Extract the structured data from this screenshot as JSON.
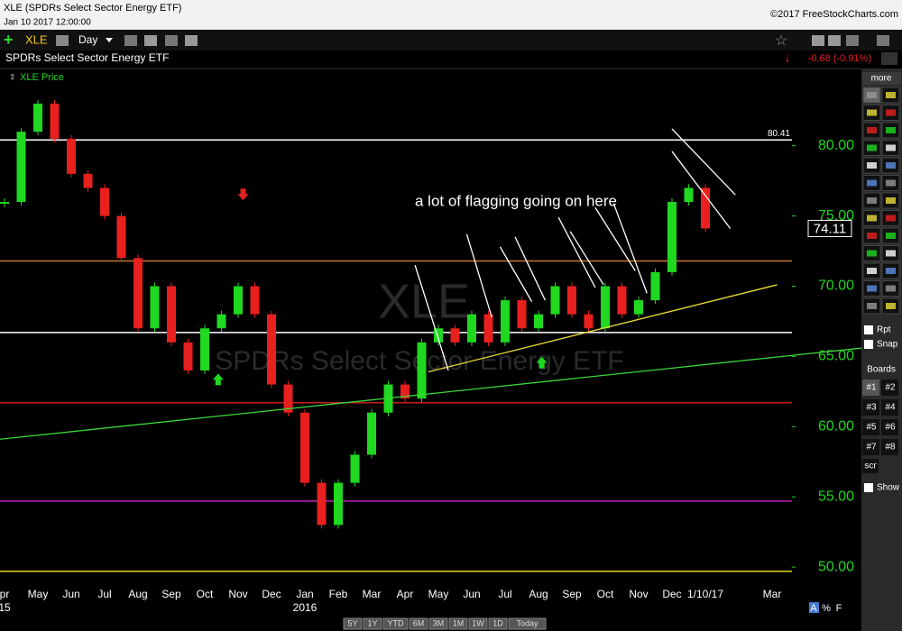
{
  "ui": {
    "window_title": "XLE (SPDRs Select Sector Energy ETF)",
    "timestamp": "Jan 10 2017 12:00:00",
    "copyright": "©2017 FreeStockCharts.com",
    "symbol": "XLE",
    "interval": "Day",
    "name": "SPDRs Select Sector Energy ETF",
    "change": "-0.68 (-0.91%)",
    "sidebar": {
      "more": "more",
      "rpt": "Rpt",
      "snap": "Snap",
      "boards": "Boards",
      "board_buttons": [
        "#1",
        "#2",
        "#3",
        "#4",
        "#5",
        "#6",
        "#7",
        "#8"
      ],
      "scr": "scr",
      "show": "Show"
    },
    "ranges": [
      "5Y",
      "1Y",
      "YTD",
      "6M",
      "3M",
      "1M",
      "1W",
      "1D",
      "Today"
    ],
    "footer_icons": [
      "A",
      "%",
      "F"
    ]
  },
  "chart_data": {
    "type": "candlestick",
    "watermark": {
      "symbol": "XLE",
      "name": "SPDRs Select Sector Energy ETF"
    },
    "annotation": "a lot of flagging going on here",
    "categories": [
      "pr",
      null,
      "May",
      null,
      "Jun",
      null,
      "Jul",
      null,
      "Aug",
      null,
      "Sep",
      null,
      "Oct",
      null,
      "Nov",
      null,
      "Dec",
      null,
      "Jan",
      null,
      "Feb",
      null,
      "Mar",
      null,
      "Apr",
      null,
      "May",
      null,
      "Jun",
      null,
      "Jul",
      null,
      "Aug",
      null,
      "Sep",
      null,
      "Oct",
      null,
      "Nov",
      null,
      "Dec",
      null,
      "1/10/17",
      null,
      null,
      null,
      "Mar"
    ],
    "years": [
      "15",
      null,
      null,
      null,
      null,
      null,
      null,
      null,
      null,
      null,
      null,
      null,
      null,
      null,
      null,
      null,
      null,
      null,
      "2016",
      null,
      null,
      null,
      null,
      null,
      null,
      null,
      null,
      null,
      null,
      null,
      null,
      null,
      null,
      null,
      null,
      null,
      null,
      null,
      null,
      null,
      null,
      null,
      null,
      null,
      null,
      null,
      null
    ],
    "series": [
      {
        "name": "XLE Price",
        "color_up": "#1fd81f",
        "color_down": "#e8201e",
        "values": [
          76,
          81,
          83,
          80.5,
          78,
          77,
          75,
          72,
          67,
          70,
          66,
          64,
          67,
          68,
          70,
          68,
          63,
          61,
          56,
          53,
          56,
          58,
          61,
          63,
          62,
          66,
          67,
          66,
          68,
          66,
          69,
          67,
          68,
          70,
          68,
          67,
          70,
          68,
          69,
          71,
          76,
          77,
          74.11,
          null,
          null,
          null,
          null
        ]
      }
    ],
    "ylim": [
      49.3,
      85.5
    ],
    "yticks": [
      {
        "value": 50,
        "label": "50.00"
      },
      {
        "value": 55,
        "label": "55.00"
      },
      {
        "value": 60,
        "label": "60.00"
      },
      {
        "value": 65,
        "label": "65.00"
      },
      {
        "value": 70,
        "label": "70.00"
      },
      {
        "value": 75,
        "label": "75.00"
      },
      {
        "value": 80,
        "label": "80.00"
      }
    ],
    "levels": [
      {
        "value": 80.41,
        "color": "#ffffff",
        "show_label": true
      },
      {
        "value": 71.8,
        "color": "#c8742f"
      },
      {
        "value": 66.7,
        "color": "#ffffff"
      },
      {
        "value": 61.7,
        "color": "#c81e1e"
      },
      {
        "value": 54.7,
        "color": "#c020c0"
      },
      {
        "value": 49.7,
        "color": "#e6d21e"
      }
    ],
    "trendlines": [
      {
        "x1": -0.3,
        "y1": 59.1,
        "x2": 51.4,
        "y2": 65.6,
        "color": "#3ad83a"
      },
      {
        "x1": 25.4,
        "y1": 63.9,
        "x2": 46.3,
        "y2": 70.1,
        "color": "#e8dc3a"
      },
      {
        "x1": 24.6,
        "y1": 71.5,
        "x2": 26.6,
        "y2": 64.0,
        "color": "#ffffff"
      },
      {
        "x1": 27.7,
        "y1": 73.7,
        "x2": 29.2,
        "y2": 67.8,
        "color": "#ffffff"
      },
      {
        "x1": 29.7,
        "y1": 72.8,
        "x2": 31.6,
        "y2": 68.9,
        "color": "#ffffff"
      },
      {
        "x1": 30.6,
        "y1": 73.5,
        "x2": 32.4,
        "y2": 69.0,
        "color": "#ffffff"
      },
      {
        "x1": 33.2,
        "y1": 74.9,
        "x2": 35.4,
        "y2": 69.9,
        "color": "#ffffff"
      },
      {
        "x1": 33.9,
        "y1": 73.9,
        "x2": 35.9,
        "y2": 70.1,
        "color": "#ffffff"
      },
      {
        "x1": 35.4,
        "y1": 75.6,
        "x2": 37.8,
        "y2": 71.1,
        "color": "#ffffff"
      },
      {
        "x1": 36.5,
        "y1": 75.9,
        "x2": 38.5,
        "y2": 69.5,
        "color": "#ffffff"
      },
      {
        "x1": 40.0,
        "y1": 81.2,
        "x2": 43.8,
        "y2": 76.5,
        "color": "#ffffff"
      },
      {
        "x1": 40.0,
        "y1": 79.6,
        "x2": 43.5,
        "y2": 74.1,
        "color": "#ffffff"
      }
    ],
    "arrows": [
      {
        "x": 14.3,
        "y": 76.5,
        "direction": "down",
        "color": "#e8201e"
      },
      {
        "x": 12.8,
        "y": 63.4,
        "direction": "up",
        "color": "#1fd81f"
      },
      {
        "x": 32.2,
        "y": 64.6,
        "direction": "up",
        "color": "#1fd81f"
      }
    ]
  }
}
